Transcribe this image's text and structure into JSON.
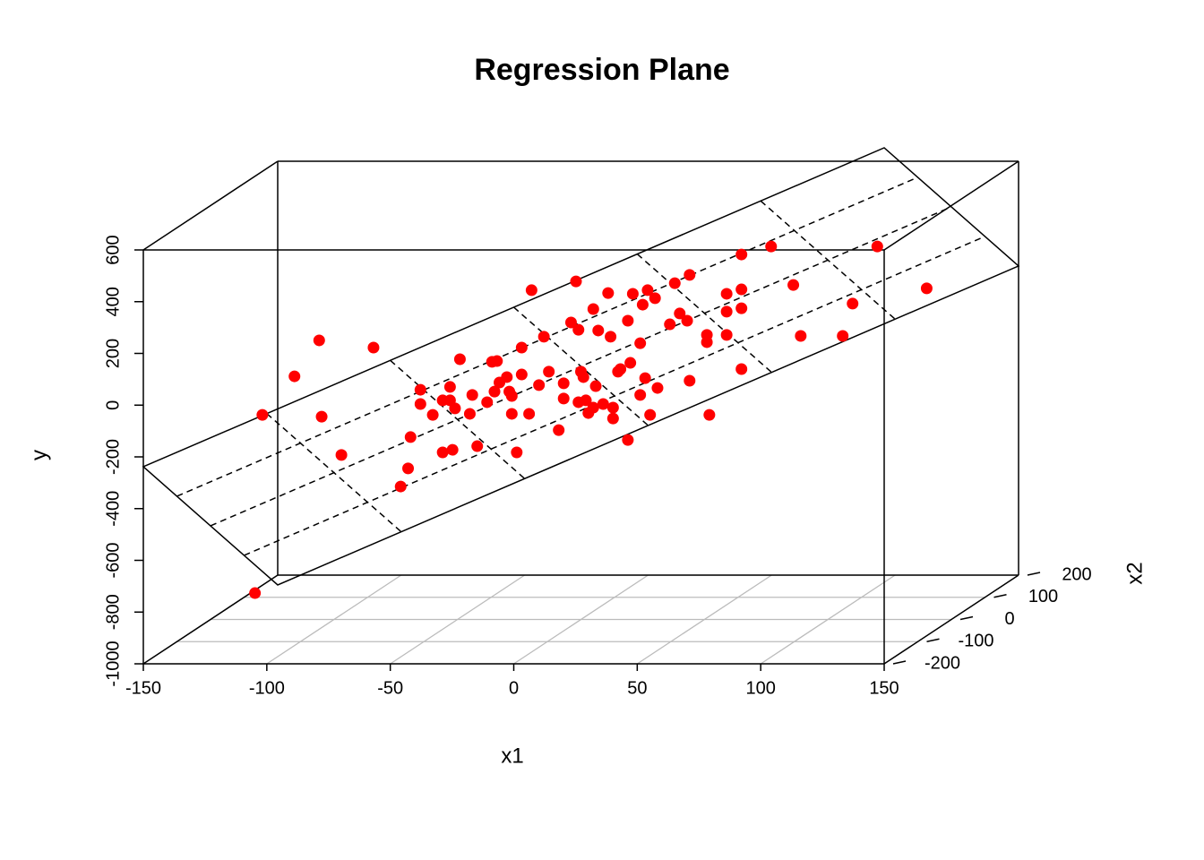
{
  "chart_data": {
    "type": "scatter3d",
    "title": "Regression Plane",
    "xlabel": "x1",
    "ylabel": "y",
    "x2label": "x2",
    "x1": [
      -129,
      -116,
      -106,
      -105,
      -97,
      -84,
      -132,
      -73,
      -70,
      -69,
      -65,
      -65,
      -60,
      -56,
      -56,
      -53,
      -53,
      -52,
      -51,
      -49,
      -45,
      -44,
      -42,
      -38,
      -36,
      -34,
      -35,
      -33,
      -30,
      -29,
      -28,
      -28,
      -26,
      -24,
      -24,
      -21,
      -20,
      -17,
      -15,
      -13,
      -9,
      -7,
      -7,
      -4,
      -2,
      -1,
      -1,
      0,
      1,
      2,
      3,
      5,
      5,
      6,
      7,
      9,
      11,
      12,
      13,
      13,
      15,
      16,
      19,
      19,
      20,
      21,
      24,
      24,
      25,
      26,
      27,
      28,
      30,
      31,
      36,
      38,
      40,
      43,
      44,
      44,
      51,
      51,
      52,
      59,
      59,
      59,
      65,
      65,
      65,
      65,
      77,
      86,
      89,
      106,
      110,
      120,
      140
    ],
    "x2": [
      0,
      0,
      0,
      0,
      0,
      0,
      0,
      0,
      0,
      0,
      0,
      0,
      0,
      0,
      0,
      0,
      0,
      0,
      0,
      0,
      0,
      0,
      0,
      0,
      0,
      0,
      0,
      0,
      0,
      0,
      0,
      0,
      0,
      0,
      0,
      0,
      0,
      0,
      0,
      0,
      0,
      0,
      0,
      0,
      0,
      0,
      0,
      0,
      0,
      0,
      0,
      0,
      0,
      0,
      0,
      0,
      0,
      0,
      0,
      0,
      0,
      0,
      0,
      0,
      0,
      0,
      0,
      0,
      0,
      0,
      0,
      0,
      0,
      0,
      0,
      0,
      0,
      0,
      0,
      0,
      0,
      0,
      0,
      0,
      0,
      0,
      0,
      0,
      0,
      0,
      0,
      0,
      0,
      0,
      0,
      0,
      0
    ],
    "y": [
      -209,
      -60,
      79,
      -216,
      -364,
      51,
      -898,
      -486,
      -416,
      -295,
      -112,
      -167,
      -209,
      -153,
      -354,
      -101,
      -153,
      -344,
      -184,
      6,
      -205,
      -132,
      -330,
      -160,
      -4,
      -1,
      -119,
      -84,
      -63,
      -119,
      -136,
      -205,
      -354,
      -53,
      51,
      -205,
      273,
      -94,
      93,
      -42,
      -268,
      -87,
      -146,
      148,
      307,
      120,
      -160,
      -42,
      -63,
      -153,
      -202,
      200,
      -181,
      -98,
      117,
      -167,
      262,
      93,
      -181,
      -223,
      -42,
      -32,
      -306,
      155,
      -8,
      259,
      68,
      -132,
      217,
      -67,
      273,
      -209,
      242,
      -105,
      141,
      300,
      183,
      155,
      332,
      -77,
      72,
      100,
      -209,
      190,
      100,
      259,
      411,
      203,
      276,
      -32,
      442,
      293,
      96,
      96,
      221,
      442,
      280
    ],
    "color": "#ff0000",
    "plane": {
      "intercept": -21.5,
      "x1": 4.11,
      "x2": -2
    },
    "xlim": [
      -150,
      150
    ],
    "xticks": [
      -150,
      -100,
      -50,
      0,
      50,
      100,
      150
    ],
    "ylim": [
      -1000,
      600
    ],
    "yticks": [
      -1000,
      -800,
      -600,
      -400,
      -200,
      0,
      200,
      400,
      600
    ],
    "x2lim": [
      -200,
      200
    ],
    "x2ticks": [
      -200,
      -100,
      0,
      100,
      200
    ],
    "grid": true
  }
}
